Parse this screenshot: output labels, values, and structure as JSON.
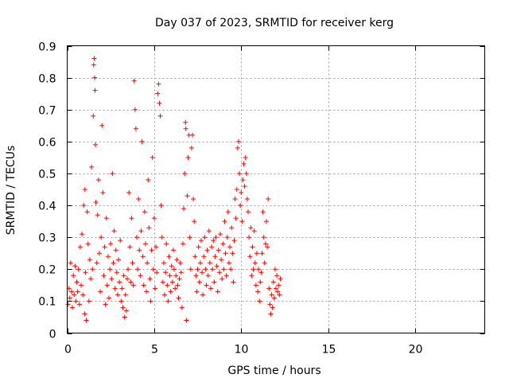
{
  "chart_data": {
    "type": "scatter",
    "title": "Day 037 of 2023, SRMTID for receiver kerg",
    "xlabel": "GPS time / hours",
    "ylabel": "SRMTID / TECUs",
    "xlim": [
      0,
      24
    ],
    "ylim": [
      0,
      0.9
    ],
    "xticks": [
      0,
      5,
      10,
      15,
      20
    ],
    "yticks": [
      0,
      0.1,
      0.2,
      0.3,
      0.4,
      0.5,
      0.6,
      0.7,
      0.8,
      0.9
    ],
    "grid": true,
    "marker": "+",
    "color": "#ff0000",
    "series": [
      {
        "name": "SRMTID",
        "points": [
          [
            0.05,
            0.09
          ],
          [
            0.1,
            0.14
          ],
          [
            0.15,
            0.11
          ],
          [
            0.2,
            0.22
          ],
          [
            0.25,
            0.13
          ],
          [
            0.3,
            0.08
          ],
          [
            0.35,
            0.18
          ],
          [
            0.4,
            0.12
          ],
          [
            0.45,
            0.21
          ],
          [
            0.5,
            0.1
          ],
          [
            0.55,
            0.16
          ],
          [
            0.6,
            0.13
          ],
          [
            0.65,
            0.2
          ],
          [
            0.7,
            0.09
          ],
          [
            0.75,
            0.27
          ],
          [
            0.8,
            0.15
          ],
          [
            0.85,
            0.31
          ],
          [
            0.9,
            0.12
          ],
          [
            0.95,
            0.4
          ],
          [
            1.0,
            0.06
          ],
          [
            1.02,
            0.45
          ],
          [
            1.05,
            0.19
          ],
          [
            1.1,
            0.04
          ],
          [
            1.15,
            0.38
          ],
          [
            1.2,
            0.28
          ],
          [
            1.25,
            0.1
          ],
          [
            1.3,
            0.23
          ],
          [
            1.35,
            0.17
          ],
          [
            1.4,
            0.52
          ],
          [
            1.45,
            0.2
          ],
          [
            1.5,
            0.68
          ],
          [
            1.52,
            0.84
          ],
          [
            1.55,
            0.86
          ],
          [
            1.58,
            0.8
          ],
          [
            1.6,
            0.76
          ],
          [
            1.62,
            0.59
          ],
          [
            1.65,
            0.41
          ],
          [
            1.7,
            0.22
          ],
          [
            1.75,
            0.37
          ],
          [
            1.8,
            0.48
          ],
          [
            1.85,
            0.25
          ],
          [
            1.9,
            0.13
          ],
          [
            1.95,
            0.3
          ],
          [
            2.0,
            0.65
          ],
          [
            2.05,
            0.44
          ],
          [
            2.1,
            0.18
          ],
          [
            2.15,
            0.27
          ],
          [
            2.2,
            0.09
          ],
          [
            2.25,
            0.36
          ],
          [
            2.3,
            0.15
          ],
          [
            2.35,
            0.24
          ],
          [
            2.4,
            0.11
          ],
          [
            2.45,
            0.2
          ],
          [
            2.5,
            0.28
          ],
          [
            2.55,
            0.17
          ],
          [
            2.6,
            0.5
          ],
          [
            2.65,
            0.22
          ],
          [
            2.7,
            0.32
          ],
          [
            2.75,
            0.14
          ],
          [
            2.8,
            0.26
          ],
          [
            2.85,
            0.19
          ],
          [
            2.9,
            0.12
          ],
          [
            2.95,
            0.23
          ],
          [
            3.0,
            0.16
          ],
          [
            3.05,
            0.29
          ],
          [
            3.1,
            0.1
          ],
          [
            3.15,
            0.14
          ],
          [
            3.2,
            0.08
          ],
          [
            3.25,
            0.18
          ],
          [
            3.3,
            0.05
          ],
          [
            3.35,
            0.12
          ],
          [
            3.4,
            0.07
          ],
          [
            3.45,
            0.17
          ],
          [
            3.5,
            0.2
          ],
          [
            3.55,
            0.44
          ],
          [
            3.6,
            0.27
          ],
          [
            3.65,
            0.16
          ],
          [
            3.7,
            0.36
          ],
          [
            3.75,
            0.22
          ],
          [
            3.8,
            0.15
          ],
          [
            3.85,
            0.79
          ],
          [
            3.9,
            0.7
          ],
          [
            3.95,
            0.64
          ],
          [
            4.0,
            0.3
          ],
          [
            4.05,
            0.2
          ],
          [
            4.1,
            0.42
          ],
          [
            4.15,
            0.26
          ],
          [
            4.2,
            0.18
          ],
          [
            4.25,
            0.32
          ],
          [
            4.3,
            0.6
          ],
          [
            4.35,
            0.24
          ],
          [
            4.4,
            0.15
          ],
          [
            4.45,
            0.38
          ],
          [
            4.5,
            0.28
          ],
          [
            4.55,
            0.13
          ],
          [
            4.6,
            0.22
          ],
          [
            4.65,
            0.48
          ],
          [
            4.7,
            0.33
          ],
          [
            4.75,
            0.17
          ],
          [
            4.8,
            0.1
          ],
          [
            4.85,
            0.26
          ],
          [
            4.9,
            0.55
          ],
          [
            4.95,
            0.2
          ],
          [
            5.0,
            0.36
          ],
          [
            5.05,
            0.14
          ],
          [
            5.1,
            0.27
          ],
          [
            5.15,
            0.19
          ],
          [
            5.2,
            0.75
          ],
          [
            5.25,
            0.78
          ],
          [
            5.3,
            0.72
          ],
          [
            5.35,
            0.68
          ],
          [
            5.4,
            0.4
          ],
          [
            5.45,
            0.3
          ],
          [
            5.5,
            0.16
          ],
          [
            5.55,
            0.22
          ],
          [
            5.6,
            0.12
          ],
          [
            5.65,
            0.19
          ],
          [
            5.7,
            0.28
          ],
          [
            5.75,
            0.15
          ],
          [
            5.8,
            0.1
          ],
          [
            5.85,
            0.24
          ],
          [
            5.9,
            0.18
          ],
          [
            5.95,
            0.13
          ],
          [
            6.0,
            0.21
          ],
          [
            6.05,
            0.16
          ],
          [
            6.1,
            0.26
          ],
          [
            6.15,
            0.2
          ],
          [
            6.2,
            0.14
          ],
          [
            6.25,
            0.18
          ],
          [
            6.3,
            0.23
          ],
          [
            6.35,
            0.15
          ],
          [
            6.4,
            0.11
          ],
          [
            6.45,
            0.17
          ],
          [
            6.5,
            0.22
          ],
          [
            6.55,
            0.19
          ],
          [
            6.6,
            0.08
          ],
          [
            6.65,
            0.28
          ],
          [
            6.7,
            0.39
          ],
          [
            6.75,
            0.5
          ],
          [
            6.8,
            0.66
          ],
          [
            6.82,
            0.64
          ],
          [
            6.85,
            0.04
          ],
          [
            6.9,
            0.43
          ],
          [
            6.95,
            0.55
          ],
          [
            7.0,
            0.62
          ],
          [
            7.05,
            0.3
          ],
          [
            7.1,
            0.2
          ],
          [
            7.15,
            0.58
          ],
          [
            7.2,
            0.62
          ],
          [
            7.25,
            0.42
          ],
          [
            7.3,
            0.35
          ],
          [
            7.35,
            0.24
          ],
          [
            7.4,
            0.18
          ],
          [
            7.45,
            0.13
          ],
          [
            7.5,
            0.2
          ],
          [
            7.55,
            0.27
          ],
          [
            7.6,
            0.16
          ],
          [
            7.65,
            0.22
          ],
          [
            7.7,
            0.29
          ],
          [
            7.75,
            0.19
          ],
          [
            7.8,
            0.12
          ],
          [
            7.85,
            0.24
          ],
          [
            7.9,
            0.3
          ],
          [
            7.95,
            0.2
          ],
          [
            8.0,
            0.15
          ],
          [
            8.05,
            0.26
          ],
          [
            8.1,
            0.18
          ],
          [
            8.15,
            0.32
          ],
          [
            8.2,
            0.22
          ],
          [
            8.25,
            0.14
          ],
          [
            8.3,
            0.27
          ],
          [
            8.35,
            0.2
          ],
          [
            8.4,
            0.29
          ],
          [
            8.45,
            0.16
          ],
          [
            8.5,
            0.24
          ],
          [
            8.55,
            0.3
          ],
          [
            8.6,
            0.21
          ],
          [
            8.65,
            0.13
          ],
          [
            8.7,
            0.26
          ],
          [
            8.75,
            0.19
          ],
          [
            8.8,
            0.31
          ],
          [
            8.85,
            0.23
          ],
          [
            8.9,
            0.17
          ],
          [
            8.95,
            0.28
          ],
          [
            9.0,
            0.2
          ],
          [
            9.05,
            0.35
          ],
          [
            9.1,
            0.25
          ],
          [
            9.15,
            0.18
          ],
          [
            9.2,
            0.3
          ],
          [
            9.25,
            0.38
          ],
          [
            9.3,
            0.22
          ],
          [
            9.35,
            0.27
          ],
          [
            9.4,
            0.2
          ],
          [
            9.45,
            0.33
          ],
          [
            9.5,
            0.25
          ],
          [
            9.55,
            0.16
          ],
          [
            9.6,
            0.29
          ],
          [
            9.65,
            0.42
          ],
          [
            9.7,
            0.36
          ],
          [
            9.75,
            0.45
          ],
          [
            9.8,
            0.58
          ],
          [
            9.85,
            0.6
          ],
          [
            9.9,
            0.5
          ],
          [
            9.95,
            0.4
          ],
          [
            10.0,
            0.44
          ],
          [
            10.05,
            0.35
          ],
          [
            10.1,
            0.48
          ],
          [
            10.15,
            0.53
          ],
          [
            10.2,
            0.46
          ],
          [
            10.25,
            0.55
          ],
          [
            10.3,
            0.5
          ],
          [
            10.35,
            0.42
          ],
          [
            10.4,
            0.38
          ],
          [
            10.45,
            0.3
          ],
          [
            10.5,
            0.24
          ],
          [
            10.55,
            0.33
          ],
          [
            10.6,
            0.18
          ],
          [
            10.65,
            0.27
          ],
          [
            10.7,
            0.2
          ],
          [
            10.75,
            0.32
          ],
          [
            10.8,
            0.22
          ],
          [
            10.85,
            0.15
          ],
          [
            10.9,
            0.25
          ],
          [
            10.95,
            0.13
          ],
          [
            11.0,
            0.2
          ],
          [
            11.05,
            0.1
          ],
          [
            11.1,
            0.16
          ],
          [
            11.15,
            0.19
          ],
          [
            11.2,
            0.25
          ],
          [
            11.25,
            0.38
          ],
          [
            11.3,
            0.3
          ],
          [
            11.35,
            0.22
          ],
          [
            11.4,
            0.28
          ],
          [
            11.45,
            0.35
          ],
          [
            11.5,
            0.27
          ],
          [
            11.55,
            0.42
          ],
          [
            11.6,
            0.14
          ],
          [
            11.65,
            0.09
          ],
          [
            11.7,
            0.06
          ],
          [
            11.75,
            0.12
          ],
          [
            11.8,
            0.08
          ],
          [
            11.85,
            0.16
          ],
          [
            11.9,
            0.11
          ],
          [
            11.95,
            0.2
          ],
          [
            12.0,
            0.14
          ],
          [
            12.05,
            0.18
          ],
          [
            12.1,
            0.13
          ],
          [
            12.15,
            0.15
          ],
          [
            12.2,
            0.12
          ],
          [
            12.25,
            0.17
          ]
        ]
      }
    ]
  }
}
